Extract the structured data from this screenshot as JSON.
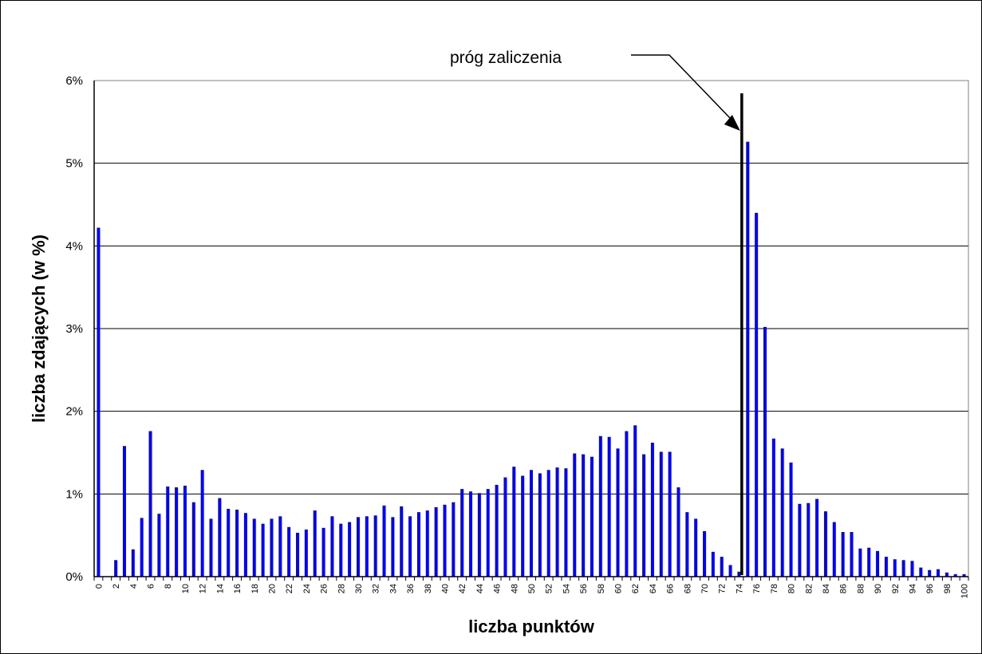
{
  "chart_data": {
    "type": "bar",
    "xlabel": "liczba punktów",
    "ylabel": "liczba zdających (w %)",
    "y_ticks": [
      "0%",
      "1%",
      "2%",
      "3%",
      "4%",
      "5%",
      "6%"
    ],
    "ylim": [
      0,
      6
    ],
    "y_tick_step": 1,
    "grid": true,
    "bar_color": "#0000ff",
    "x": [
      0,
      1,
      2,
      3,
      4,
      5,
      6,
      7,
      8,
      9,
      10,
      11,
      12,
      13,
      14,
      15,
      16,
      17,
      18,
      19,
      20,
      21,
      22,
      23,
      24,
      25,
      26,
      27,
      28,
      29,
      30,
      31,
      32,
      33,
      34,
      35,
      36,
      37,
      38,
      39,
      40,
      41,
      42,
      43,
      44,
      45,
      46,
      47,
      48,
      49,
      50,
      51,
      52,
      53,
      54,
      55,
      56,
      57,
      58,
      59,
      60,
      61,
      62,
      63,
      64,
      65,
      66,
      67,
      68,
      69,
      70,
      71,
      72,
      73,
      74,
      75,
      76,
      77,
      78,
      79,
      80,
      81,
      82,
      83,
      84,
      85,
      86,
      87,
      88,
      89,
      90,
      91,
      92,
      93,
      94,
      95,
      96,
      97,
      98,
      99,
      100
    ],
    "x_tick_labels": [
      "0",
      "2",
      "4",
      "6",
      "8",
      "10",
      "12",
      "14",
      "16",
      "18",
      "20",
      "22",
      "24",
      "26",
      "28",
      "30",
      "32",
      "34",
      "36",
      "38",
      "40",
      "42",
      "44",
      "46",
      "48",
      "50",
      "52",
      "54",
      "56",
      "58",
      "60",
      "62",
      "64",
      "66",
      "68",
      "70",
      "72",
      "74",
      "76",
      "78",
      "80",
      "82",
      "84",
      "86",
      "88",
      "90",
      "92",
      "94",
      "96",
      "98",
      "100"
    ],
    "values": [
      4.22,
      0.0,
      0.2,
      1.58,
      0.33,
      0.71,
      1.76,
      0.76,
      1.09,
      1.08,
      1.1,
      0.9,
      1.29,
      0.7,
      0.95,
      0.82,
      0.81,
      0.77,
      0.7,
      0.64,
      0.7,
      0.73,
      0.6,
      0.53,
      0.57,
      0.8,
      0.59,
      0.73,
      0.64,
      0.66,
      0.72,
      0.73,
      0.74,
      0.86,
      0.72,
      0.85,
      0.73,
      0.78,
      0.8,
      0.84,
      0.87,
      0.9,
      1.06,
      1.03,
      1.01,
      1.06,
      1.11,
      1.2,
      1.33,
      1.22,
      1.29,
      1.25,
      1.29,
      1.32,
      1.31,
      1.49,
      1.48,
      1.45,
      1.7,
      1.69,
      1.55,
      1.76,
      1.83,
      1.48,
      1.62,
      1.51,
      1.51,
      1.08,
      0.78,
      0.7,
      0.55,
      0.3,
      0.24,
      0.14,
      0.06,
      5.26,
      4.4,
      3.02,
      1.67,
      1.55,
      1.38,
      0.88,
      0.89,
      0.94,
      0.79,
      0.66,
      0.54,
      0.54,
      0.34,
      0.35,
      0.31,
      0.24,
      0.21,
      0.2,
      0.19,
      0.11,
      0.08,
      0.09,
      0.05,
      0.03,
      0.03
    ],
    "threshold": {
      "x": 75,
      "label": "próg zaliczenia"
    }
  }
}
